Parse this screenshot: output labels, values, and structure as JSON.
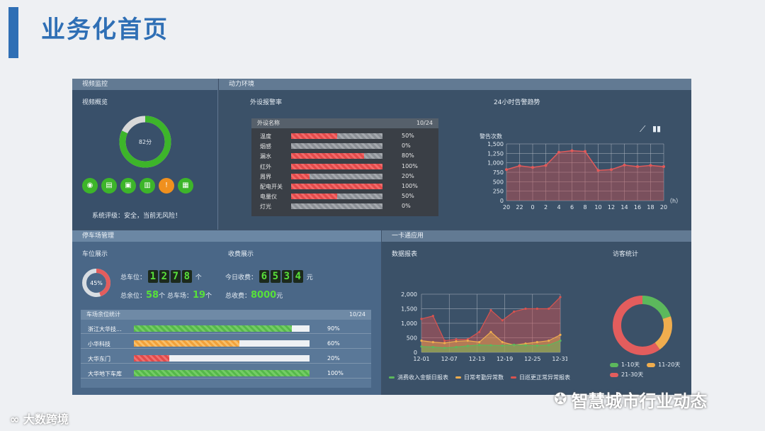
{
  "page": {
    "title": "业务化首页"
  },
  "video": {
    "header": "视频监控",
    "overview_label": "视频概览",
    "score": 82,
    "score_label": "82分",
    "status": "系统评级：安全，当前无风险！",
    "icons": [
      "camera-icon",
      "dvr-icon",
      "monitor-icon",
      "storage-icon",
      "alarm-icon",
      "device-icon"
    ]
  },
  "power": {
    "header": "动力环境",
    "alarm_rate_label": "外设报警率",
    "table_header": "外设名称",
    "page_indicator": "10/24",
    "devices": [
      {
        "name": "温度",
        "value": 50,
        "pct": "50%"
      },
      {
        "name": "烟感",
        "value": 0,
        "pct": "0%"
      },
      {
        "name": "漏水",
        "value": 80,
        "pct": "80%"
      },
      {
        "name": "红外",
        "value": 100,
        "pct": "100%"
      },
      {
        "name": "周界",
        "value": 20,
        "pct": "20%"
      },
      {
        "name": "配电开关",
        "value": 100,
        "pct": "100%"
      },
      {
        "name": "电量仪",
        "value": 50,
        "pct": "50%"
      },
      {
        "name": "灯光",
        "value": 0,
        "pct": "0%"
      }
    ],
    "trend_title": "24小时告警趋势",
    "trend_ylabel": "警告次数",
    "trend_unit": "（h）"
  },
  "parking": {
    "header": "停车场管理",
    "spaces_label": "车位展示",
    "fee_label": "收费展示",
    "total_spaces_label": "总车位：",
    "total_spaces_digits": [
      "1",
      "2",
      "7",
      "8"
    ],
    "total_spaces_unit": "个",
    "remaining_label": "总余位：",
    "remaining_value": "58",
    "remaining_unit": "个",
    "lots_label": "总车场：",
    "lots_value": "19",
    "lots_unit": "个",
    "today_fee_label": "今日收费：",
    "today_fee_digits": [
      "6",
      "5",
      "3",
      "4"
    ],
    "today_fee_unit": "元",
    "total_fee_label": "总收费：",
    "total_fee_value": "8000",
    "total_fee_unit": "元",
    "usage_percent": 45,
    "usage_label": "45%",
    "lot_table_header": "车场余位统计",
    "lot_page_indicator": "10/24",
    "lots": [
      {
        "name": "浙江大华技...",
        "value": 90,
        "pct": "90%",
        "color": "g"
      },
      {
        "name": "小华科技",
        "value": 60,
        "pct": "60%",
        "color": "o"
      },
      {
        "name": "大华东门",
        "value": 20,
        "pct": "20%",
        "color": "r"
      },
      {
        "name": "大华地下车库",
        "value": 100,
        "pct": "100%",
        "color": "g"
      }
    ]
  },
  "card": {
    "header": "一卡通应用",
    "report_label": "数据报表",
    "visitor_label": "访客统计",
    "legend": [
      "消费收入金额日报表",
      "日常考勤异常数",
      "日巡更正常异常报表"
    ],
    "visitor_legend": [
      "1-10天",
      "11-20天",
      "21-30天"
    ]
  },
  "watermark": {
    "brand": "智慧城市行业动态",
    "left_brand": "大数跨境"
  },
  "chart_data": [
    {
      "type": "area",
      "title": "24小时告警趋势",
      "ylabel": "警告次数",
      "xlabel": "（h）",
      "x": [
        "20",
        "22",
        "0",
        "2",
        "4",
        "6",
        "8",
        "10",
        "12",
        "14",
        "16",
        "18",
        "20"
      ],
      "values": [
        820,
        920,
        880,
        930,
        1280,
        1320,
        1300,
        800,
        820,
        940,
        900,
        930,
        900
      ],
      "yticks": [
        0,
        250,
        500,
        750,
        1000,
        1250,
        1500
      ],
      "ylim": [
        0,
        1500
      ],
      "color": "#d9534f"
    },
    {
      "type": "line",
      "title": "数据报表",
      "x_ticks": [
        "12-01",
        "12-07",
        "12-13",
        "12-19",
        "12-25",
        "12-31"
      ],
      "yticks": [
        0,
        500,
        1000,
        1500,
        2000
      ],
      "ylim": [
        0,
        2000
      ],
      "series": [
        {
          "name": "消费收入金额日报表",
          "color": "#5cb85c",
          "values": [
            200,
            180,
            150,
            180,
            220,
            250,
            240,
            230,
            260,
            240,
            230,
            250,
            400
          ]
        },
        {
          "name": "日常考勤异常数",
          "color": "#f0ad4e",
          "values": [
            400,
            350,
            320,
            380,
            400,
            350,
            700,
            350,
            250,
            300,
            350,
            400,
            600
          ]
        },
        {
          "name": "日巡更正常异常报表",
          "color": "#d9534f",
          "values": [
            1150,
            1250,
            400,
            450,
            450,
            700,
            1450,
            1100,
            1400,
            1500,
            1500,
            1500,
            1900
          ]
        }
      ]
    },
    {
      "type": "pie",
      "title": "访客统计",
      "categories": [
        "1-10天",
        "11-20天",
        "21-30天"
      ],
      "values": [
        20,
        20,
        60
      ],
      "colors": [
        "#5cb85c",
        "#f0ad4e",
        "#e35d5d"
      ]
    }
  ],
  "colors": {
    "accent": "#2f6fb5",
    "green": "#3db52a",
    "red": "#e24a4a",
    "orange": "#f0a13a"
  }
}
